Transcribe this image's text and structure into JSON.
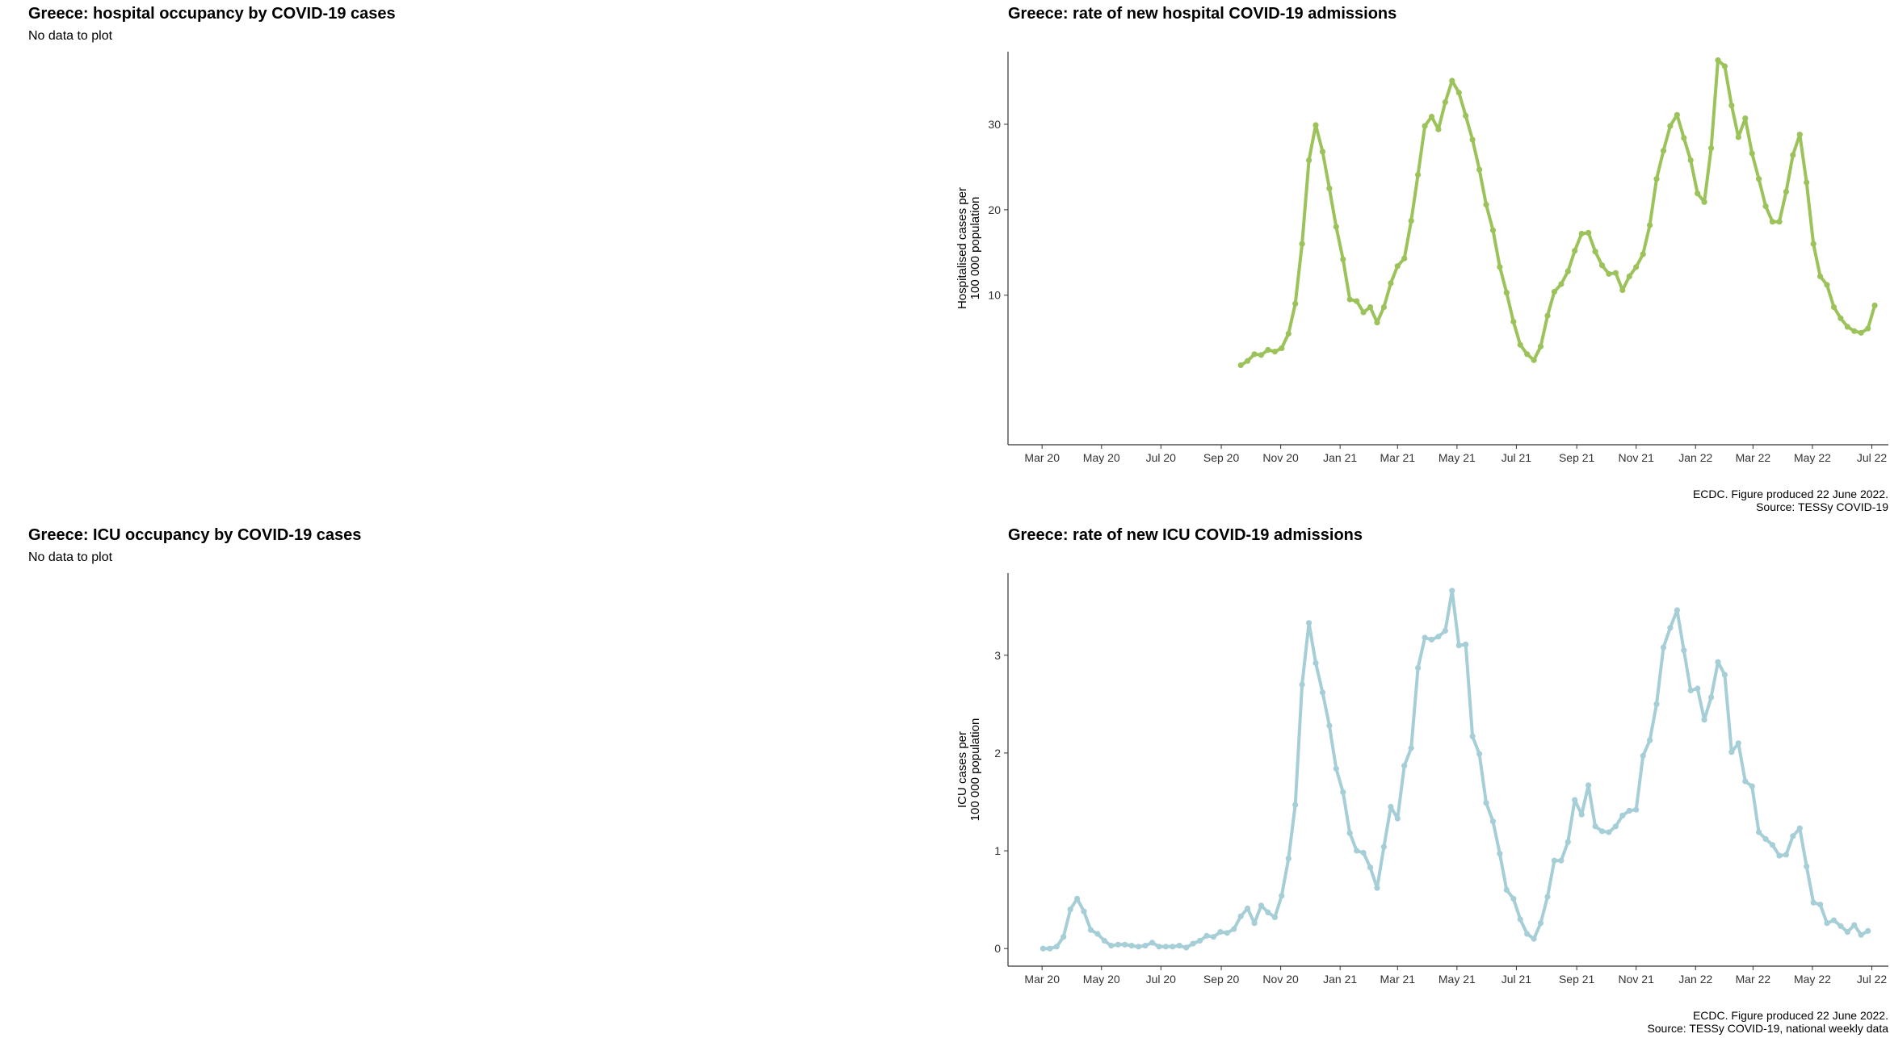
{
  "panels": {
    "hosp_occ": {
      "title": "Greece: hospital occupancy by COVID-19 cases",
      "message": "No data to plot"
    },
    "icu_occ": {
      "title": "Greece: ICU occupancy by COVID-19 cases",
      "message": "No data to plot"
    },
    "hosp_rate": {
      "title": "Greece: rate of new hospital COVID-19 admissions",
      "caption_line1": "ECDC. Figure produced 22 June 2022.",
      "caption_line2": "Source: TESSy COVID-19"
    },
    "icu_rate": {
      "title": "Greece: rate of new ICU COVID-19 admissions",
      "caption_line1": "ECDC. Figure produced 22 June 2022.",
      "caption_line2": "Source: TESSy COVID-19, national weekly data"
    }
  },
  "chart_data": [
    {
      "type": "line",
      "title": "Greece: rate of new hospital COVID-19 admissions",
      "ylabel_line1": "Hospitalised cases per",
      "ylabel_line2": "100 000 population",
      "xlabel": "",
      "color": "#9BC35A",
      "grid": false,
      "x_ticks": [
        "Mar 20",
        "May 20",
        "Jul 20",
        "Sep 20",
        "Nov 20",
        "Jan 21",
        "Mar 21",
        "May 21",
        "Jul 21",
        "Sep 21",
        "Nov 21",
        "Jan 22",
        "Mar 22",
        "May 22",
        "Jul 22"
      ],
      "y_ticks": [
        10,
        20,
        30
      ],
      "ylim": [
        -7.5,
        38.5
      ],
      "x_start": "2020-09-21",
      "x_step_weeks": 1,
      "values": [
        1.8,
        2.3,
        3.1,
        3.0,
        3.6,
        3.4,
        3.8,
        5.5,
        9.0,
        16.0,
        25.8,
        29.9,
        26.8,
        22.5,
        18.0,
        14.2,
        9.5,
        9.3,
        8.0,
        8.6,
        6.8,
        8.6,
        11.4,
        13.4,
        14.3,
        18.7,
        24.1,
        29.8,
        30.9,
        29.4,
        32.6,
        35.1,
        33.7,
        31.0,
        28.2,
        24.7,
        20.6,
        17.6,
        13.3,
        10.3,
        6.9,
        4.2,
        3.1,
        2.4,
        4.0,
        7.6,
        10.4,
        11.3,
        12.8,
        15.2,
        17.2,
        17.3,
        15.1,
        13.5,
        12.5,
        12.6,
        10.6,
        12.2,
        13.3,
        14.8,
        18.2,
        23.6,
        26.9,
        29.8,
        31.1,
        28.4,
        25.8,
        21.9,
        20.9,
        27.2,
        37.5,
        36.8,
        32.2,
        28.5,
        30.7,
        26.6,
        23.6,
        20.4,
        18.6,
        18.6,
        22.1,
        26.4,
        28.8,
        23.2,
        16.0,
        12.2,
        11.2,
        8.6,
        7.3,
        6.3,
        5.8,
        5.6,
        6.1,
        8.8
      ]
    },
    {
      "type": "line",
      "title": "Greece: rate of new ICU COVID-19 admissions",
      "ylabel_line1": "ICU cases per",
      "ylabel_line2": "100 000 population",
      "xlabel": "",
      "color": "#A6CED7",
      "grid": false,
      "x_ticks": [
        "Mar 20",
        "May 20",
        "Jul 20",
        "Sep 20",
        "Nov 20",
        "Jan 21",
        "Mar 21",
        "May 21",
        "Jul 21",
        "Sep 21",
        "Nov 21",
        "Jan 22",
        "Mar 22",
        "May 22",
        "Jul 22"
      ],
      "y_ticks": [
        0,
        1,
        2,
        3
      ],
      "ylim": [
        -0.18,
        3.84
      ],
      "x_start": "2020-03-02",
      "x_step_weeks": 1,
      "values": [
        0.0,
        0.0,
        0.02,
        0.12,
        0.4,
        0.51,
        0.38,
        0.19,
        0.15,
        0.08,
        0.03,
        0.04,
        0.04,
        0.03,
        0.02,
        0.03,
        0.06,
        0.02,
        0.02,
        0.02,
        0.03,
        0.01,
        0.05,
        0.08,
        0.13,
        0.12,
        0.17,
        0.16,
        0.2,
        0.33,
        0.41,
        0.26,
        0.44,
        0.37,
        0.32,
        0.54,
        0.92,
        1.47,
        2.7,
        3.33,
        2.92,
        2.62,
        2.28,
        1.84,
        1.6,
        1.18,
        1.0,
        0.98,
        0.83,
        0.62,
        1.04,
        1.45,
        1.33,
        1.87,
        2.05,
        2.87,
        3.18,
        3.16,
        3.19,
        3.25,
        3.66,
        3.1,
        3.11,
        2.17,
        1.99,
        1.49,
        1.3,
        0.97,
        0.6,
        0.51,
        0.3,
        0.15,
        0.1,
        0.26,
        0.53,
        0.9,
        0.9,
        1.09,
        1.52,
        1.37,
        1.67,
        1.25,
        1.2,
        1.19,
        1.25,
        1.36,
        1.41,
        1.42,
        1.97,
        2.13,
        2.5,
        3.08,
        3.28,
        3.46,
        3.05,
        2.64,
        2.66,
        2.34,
        2.57,
        2.93,
        2.8,
        2.01,
        2.1,
        1.71,
        1.66,
        1.19,
        1.12,
        1.06,
        0.95,
        0.96,
        1.15,
        1.23,
        0.84,
        0.47,
        0.45,
        0.26,
        0.29,
        0.23,
        0.17,
        0.24,
        0.14,
        0.18
      ]
    }
  ]
}
